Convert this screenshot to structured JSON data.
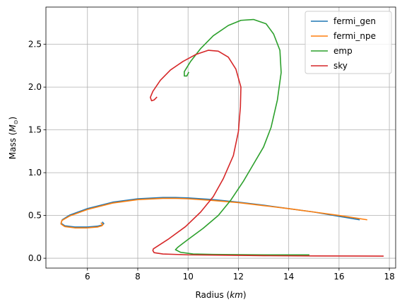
{
  "chart_data": {
    "type": "line",
    "title": "",
    "xlabel_prefix": "Radius (",
    "xlabel_unit": "km",
    "xlabel_suffix": ")",
    "ylabel_prefix": "Mass (",
    "ylabel_unit": "M",
    "ylabel_sub": "⊙",
    "ylabel_suffix": ")",
    "xlim": [
      4.35,
      18.25
    ],
    "ylim": [
      -0.115,
      2.935
    ],
    "xticks": [
      6,
      8,
      10,
      12,
      14,
      16,
      18
    ],
    "yticks": [
      0.0,
      0.5,
      1.0,
      1.5,
      2.0,
      2.5
    ],
    "xtick_labels": [
      "6",
      "8",
      "10",
      "12",
      "14",
      "16",
      "18"
    ],
    "ytick_labels": [
      "0.0",
      "0.5",
      "1.0",
      "1.5",
      "2.0",
      "2.5"
    ],
    "grid": true,
    "legend_position": "top-right",
    "series": [
      {
        "name": "fermi_gen",
        "color": "#1f77b4",
        "points": [
          [
            16.8,
            0.45
          ],
          [
            16.0,
            0.49
          ],
          [
            15.0,
            0.54
          ],
          [
            14.0,
            0.58
          ],
          [
            13.0,
            0.62
          ],
          [
            12.0,
            0.655
          ],
          [
            11.0,
            0.685
          ],
          [
            10.0,
            0.705
          ],
          [
            9.5,
            0.71
          ],
          [
            9.0,
            0.71
          ],
          [
            8.0,
            0.695
          ],
          [
            7.0,
            0.655
          ],
          [
            6.0,
            0.58
          ],
          [
            5.3,
            0.505
          ],
          [
            5.0,
            0.45
          ],
          [
            4.95,
            0.41
          ],
          [
            5.1,
            0.38
          ],
          [
            5.5,
            0.365
          ],
          [
            6.0,
            0.365
          ],
          [
            6.4,
            0.375
          ],
          [
            6.6,
            0.39
          ],
          [
            6.65,
            0.405
          ],
          [
            6.6,
            0.42
          ]
        ]
      },
      {
        "name": "fermi_npe",
        "color": "#ff7f0e",
        "points": [
          [
            17.1,
            0.45
          ],
          [
            16.0,
            0.5
          ],
          [
            15.0,
            0.54
          ],
          [
            14.0,
            0.58
          ],
          [
            13.0,
            0.615
          ],
          [
            12.0,
            0.65
          ],
          [
            11.0,
            0.675
          ],
          [
            10.0,
            0.695
          ],
          [
            9.5,
            0.7
          ],
          [
            9.0,
            0.7
          ],
          [
            8.0,
            0.685
          ],
          [
            7.0,
            0.645
          ],
          [
            6.0,
            0.57
          ],
          [
            5.3,
            0.495
          ],
          [
            4.98,
            0.44
          ],
          [
            4.95,
            0.4
          ],
          [
            5.1,
            0.37
          ],
          [
            5.5,
            0.355
          ],
          [
            6.0,
            0.355
          ],
          [
            6.4,
            0.365
          ],
          [
            6.58,
            0.38
          ],
          [
            6.62,
            0.395
          ],
          [
            6.55,
            0.41
          ]
        ]
      },
      {
        "name": "emp",
        "color": "#2ca02c",
        "points": [
          [
            14.8,
            0.04
          ],
          [
            13.0,
            0.04
          ],
          [
            11.0,
            0.045
          ],
          [
            10.2,
            0.05
          ],
          [
            9.7,
            0.07
          ],
          [
            9.5,
            0.1
          ],
          [
            9.6,
            0.13
          ],
          [
            10.0,
            0.22
          ],
          [
            10.6,
            0.35
          ],
          [
            11.2,
            0.5
          ],
          [
            11.7,
            0.68
          ],
          [
            12.2,
            0.9
          ],
          [
            12.6,
            1.1
          ],
          [
            13.0,
            1.3
          ],
          [
            13.3,
            1.53
          ],
          [
            13.55,
            1.85
          ],
          [
            13.7,
            2.17
          ],
          [
            13.65,
            2.43
          ],
          [
            13.4,
            2.62
          ],
          [
            13.1,
            2.74
          ],
          [
            12.6,
            2.79
          ],
          [
            12.1,
            2.78
          ],
          [
            11.6,
            2.72
          ],
          [
            11.0,
            2.6
          ],
          [
            10.5,
            2.45
          ],
          [
            10.1,
            2.3
          ],
          [
            9.85,
            2.18
          ],
          [
            9.85,
            2.13
          ],
          [
            9.95,
            2.13
          ],
          [
            10.02,
            2.17
          ]
        ]
      },
      {
        "name": "sky",
        "color": "#d62728",
        "points": [
          [
            17.75,
            0.025
          ],
          [
            15.0,
            0.027
          ],
          [
            13.0,
            0.03
          ],
          [
            11.5,
            0.035
          ],
          [
            10.0,
            0.04
          ],
          [
            9.0,
            0.05
          ],
          [
            8.65,
            0.065
          ],
          [
            8.6,
            0.09
          ],
          [
            8.62,
            0.11
          ],
          [
            9.2,
            0.22
          ],
          [
            9.9,
            0.37
          ],
          [
            10.5,
            0.54
          ],
          [
            11.0,
            0.72
          ],
          [
            11.4,
            0.93
          ],
          [
            11.8,
            1.2
          ],
          [
            12.0,
            1.48
          ],
          [
            12.08,
            1.77
          ],
          [
            12.1,
            2.0
          ],
          [
            11.9,
            2.21
          ],
          [
            11.6,
            2.35
          ],
          [
            11.2,
            2.42
          ],
          [
            10.8,
            2.43
          ],
          [
            10.3,
            2.38
          ],
          [
            9.8,
            2.3
          ],
          [
            9.3,
            2.2
          ],
          [
            8.9,
            2.08
          ],
          [
            8.6,
            1.95
          ],
          [
            8.5,
            1.88
          ],
          [
            8.55,
            1.84
          ],
          [
            8.65,
            1.85
          ],
          [
            8.75,
            1.88
          ]
        ]
      }
    ]
  }
}
